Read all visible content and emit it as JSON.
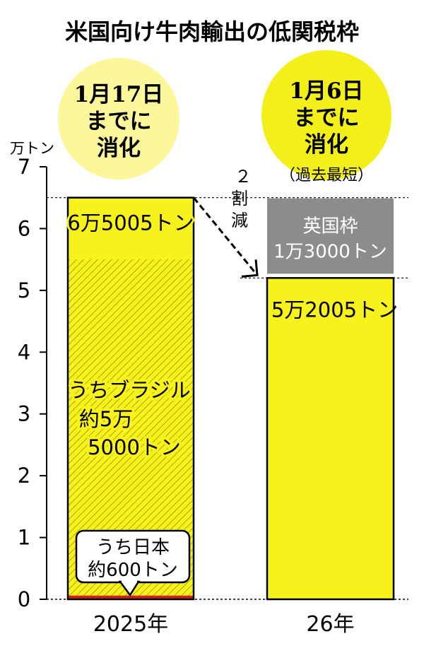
{
  "chart_data": {
    "type": "bar",
    "title": "米国向け牛肉輸出の低関税枠",
    "unit_label": "万トン",
    "categories": [
      "2025年",
      "26年"
    ],
    "ylim": [
      0,
      7
    ],
    "yticks": [
      "0",
      "1",
      "2",
      "3",
      "4",
      "5",
      "6",
      "7"
    ],
    "series": [
      {
        "values": [
          6.5005,
          5.2005
        ]
      }
    ],
    "stack_2026": {
      "label_line1": "英国枠",
      "label_line2": "1万3000トン",
      "value": 1.3
    },
    "bar_labels": [
      "6万5005トン",
      "5万2005トン"
    ],
    "breakdown_2025": {
      "brazil": {
        "line1": "うちブラジル",
        "line2": "約5万",
        "line3": "5000トン",
        "value": 5.5
      },
      "japan": {
        "line1": "うち日本",
        "line2": "約600トン",
        "value": 0.06
      }
    },
    "bubbles": [
      {
        "line1": "1月17日",
        "line2": "までに",
        "line3": "消化"
      },
      {
        "line1": "1月6日",
        "line2": "までに",
        "line3": "消化",
        "note": "（過去最短）"
      }
    ],
    "reduction": {
      "num": "２",
      "text1": "割",
      "text2": "減"
    },
    "colors": {
      "bar": "#f7f21b",
      "bubble_2025": "#fbf79a",
      "bubble_2026": "#f3ef19",
      "uk": "#8c8c8c",
      "japan": "#cf1f1f",
      "hatch": "#9a9400"
    }
  }
}
